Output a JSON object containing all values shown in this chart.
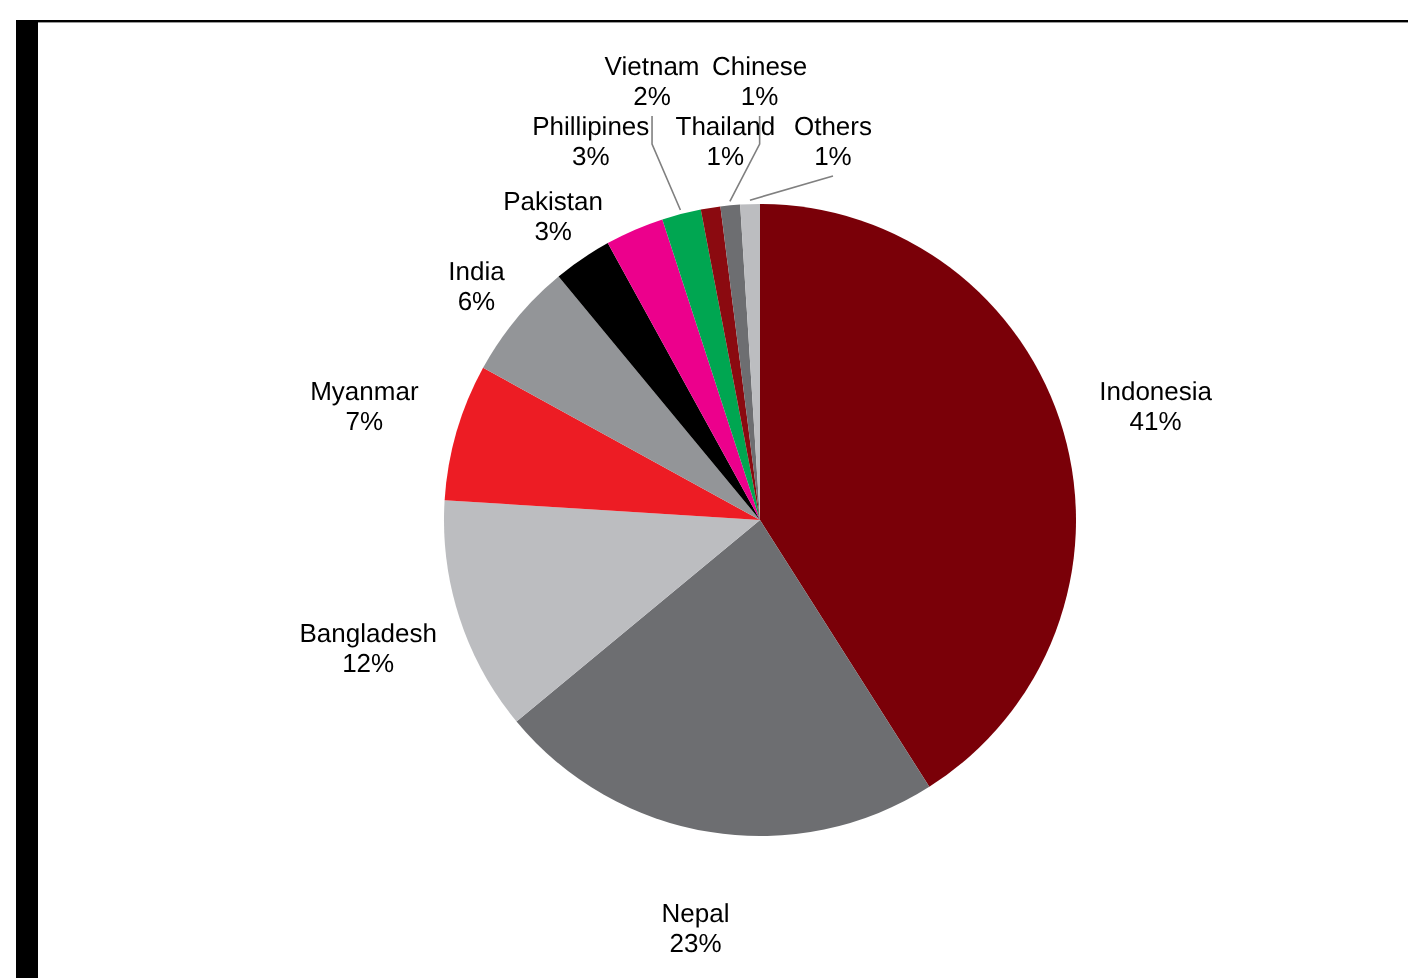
{
  "chart_data": {
    "type": "pie",
    "categories": [
      "Indonesia",
      "Nepal",
      "Bangladesh",
      "Myanmar",
      "India",
      "Pakistan",
      "Phillipines",
      "Vietnam",
      "Thailand",
      "Chinese",
      "Others"
    ],
    "values": [
      41,
      23,
      12,
      7,
      6,
      3,
      3,
      2,
      1,
      1,
      1
    ],
    "colors": [
      "#7a0008",
      "#6d6e71",
      "#bcbdc0",
      "#ed1c24",
      "#939598",
      "#000000",
      "#ec008c",
      "#00a651",
      "#8b0a10",
      "#6d6e71",
      "#bcbdc0"
    ],
    "value_labels": [
      "41%",
      "23%",
      "12%",
      "7%",
      "6%",
      "3%",
      "3%",
      "2%",
      "1%",
      "1%",
      "1%"
    ],
    "legend": false
  }
}
